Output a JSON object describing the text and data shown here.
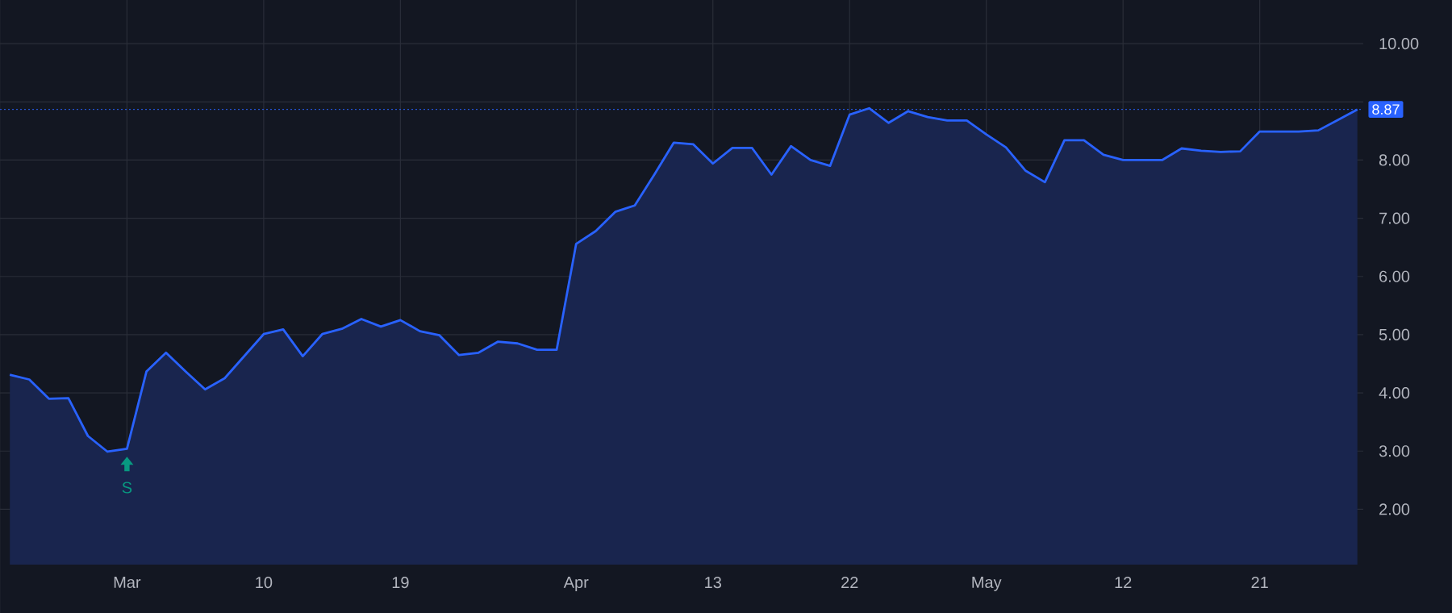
{
  "chart_data": {
    "type": "area",
    "categories": [
      null,
      null,
      null,
      null,
      null,
      null,
      "Mar",
      null,
      null,
      null,
      null,
      null,
      null,
      "10",
      null,
      null,
      null,
      null,
      null,
      null,
      "19",
      null,
      null,
      null,
      null,
      null,
      null,
      null,
      null,
      "Apr",
      null,
      null,
      null,
      null,
      null,
      null,
      "13",
      null,
      null,
      null,
      null,
      null,
      null,
      "22",
      null,
      null,
      null,
      null,
      null,
      null,
      "May",
      null,
      null,
      null,
      null,
      null,
      null,
      "12",
      null,
      null,
      null,
      null,
      null,
      null,
      "21",
      null,
      null,
      null,
      null,
      null
    ],
    "values": [
      4.31,
      4.23,
      3.9,
      3.91,
      3.26,
      2.99,
      3.04,
      4.37,
      4.69,
      4.37,
      4.06,
      4.25,
      4.63,
      5.01,
      5.09,
      4.63,
      5.01,
      5.1,
      5.27,
      5.14,
      5.25,
      5.06,
      4.99,
      4.65,
      4.69,
      4.88,
      4.85,
      4.74,
      4.74,
      6.56,
      6.78,
      7.11,
      7.22,
      7.75,
      8.3,
      8.27,
      7.94,
      8.21,
      8.21,
      7.75,
      8.24,
      8.0,
      7.9,
      8.78,
      8.89,
      8.64,
      8.84,
      8.74,
      8.68,
      8.68,
      8.44,
      8.22,
      7.82,
      7.62,
      8.34,
      8.34,
      8.09,
      8.0,
      8.0,
      8.0,
      8.2,
      8.16,
      8.14,
      8.15,
      8.49,
      8.49,
      8.49,
      8.51,
      8.69,
      8.87
    ],
    "color": "#2962ff",
    "ylim": [
      1.05,
      10.75
    ],
    "yticks": [
      {
        "value": 2,
        "label": "2.00"
      },
      {
        "value": 3,
        "label": "3.00"
      },
      {
        "value": 4,
        "label": "4.00"
      },
      {
        "value": 5,
        "label": "5.00"
      },
      {
        "value": 6,
        "label": "6.00"
      },
      {
        "value": 7,
        "label": "7.00"
      },
      {
        "value": 8,
        "label": "8.00"
      },
      {
        "value": 9,
        "label": null
      },
      {
        "value": 10,
        "label": "10.00"
      }
    ],
    "grid": true,
    "ref_lines": [
      {
        "axis": "y",
        "value": 8.87,
        "label": "8.87",
        "color": "#2962ff",
        "line_style": "dotted"
      }
    ],
    "annotations": [
      {
        "text": "S",
        "x": "Mar",
        "y": 3.04
      }
    ]
  }
}
